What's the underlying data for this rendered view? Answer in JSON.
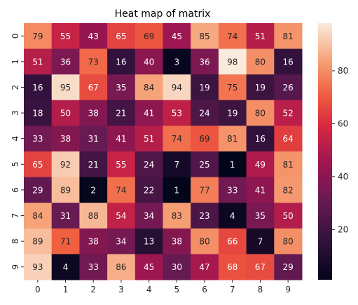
{
  "chart_data": {
    "type": "heatmap",
    "title": "Heat map of matrix",
    "xlabel": "",
    "ylabel": "",
    "x_categories": [
      "0",
      "1",
      "2",
      "3",
      "4",
      "5",
      "6",
      "7",
      "8",
      "9"
    ],
    "y_categories": [
      "0",
      "1",
      "2",
      "3",
      "4",
      "5",
      "6",
      "7",
      "8",
      "9"
    ],
    "values": [
      [
        79,
        55,
        43,
        65,
        69,
        45,
        85,
        74,
        51,
        81
      ],
      [
        51,
        36,
        73,
        16,
        40,
        3,
        36,
        98,
        80,
        16
      ],
      [
        16,
        95,
        67,
        35,
        84,
        94,
        19,
        75,
        19,
        26
      ],
      [
        18,
        50,
        38,
        21,
        41,
        53,
        24,
        19,
        80,
        52
      ],
      [
        33,
        38,
        31,
        41,
        51,
        74,
        69,
        81,
        16,
        64
      ],
      [
        65,
        92,
        21,
        55,
        24,
        7,
        25,
        1,
        49,
        81
      ],
      [
        29,
        89,
        2,
        74,
        22,
        1,
        77,
        33,
        41,
        82
      ],
      [
        84,
        31,
        88,
        54,
        34,
        83,
        23,
        4,
        35,
        50
      ],
      [
        89,
        71,
        38,
        34,
        13,
        38,
        80,
        66,
        7,
        80
      ],
      [
        93,
        4,
        33,
        86,
        45,
        30,
        47,
        68,
        67,
        29
      ]
    ],
    "colormap": "rocket",
    "vmin": 1,
    "vmax": 98,
    "colorbar_ticks": [
      20,
      40,
      60,
      80
    ],
    "annotated": true,
    "grid": false
  }
}
